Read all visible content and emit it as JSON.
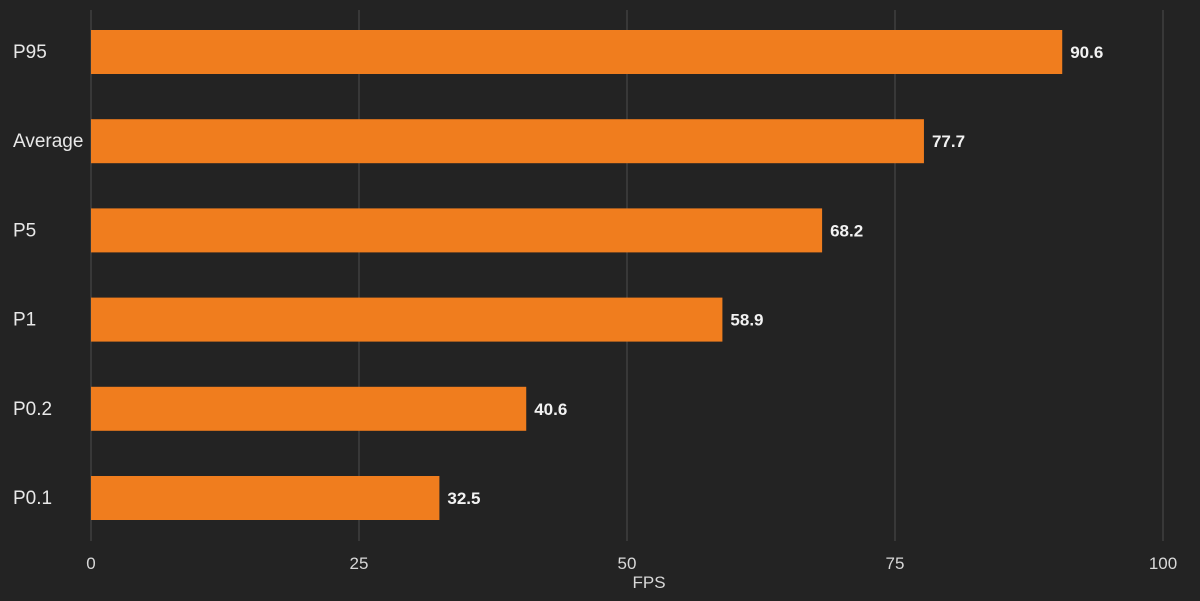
{
  "chart_data": {
    "type": "bar",
    "orientation": "horizontal",
    "categories": [
      "P95",
      "Average",
      "P5",
      "P1",
      "P0.2",
      "P0.1"
    ],
    "series": [
      {
        "values": [
          90.6,
          77.7,
          68.2,
          58.9,
          40.6,
          32.5
        ],
        "color": "#F07D1E"
      }
    ],
    "xlabel": "FPS",
    "xlim": [
      0,
      100
    ],
    "xticks": [
      0,
      25,
      50,
      75,
      100
    ],
    "grid": "vertical",
    "data_labels": true
  },
  "colors": {
    "background": "#232323",
    "bar": "#F07D1E",
    "grid": "#4e4e4e",
    "text": "#e8e8e8"
  }
}
